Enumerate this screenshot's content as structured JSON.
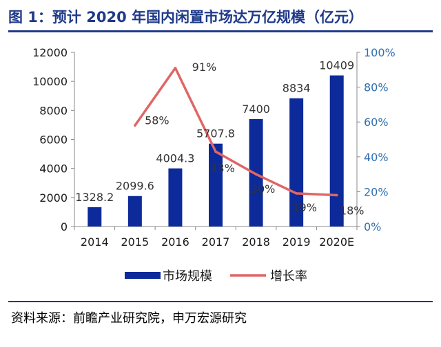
{
  "title": "图 1：预计 2020 年国内闲置市场达万亿规模（亿元）",
  "source": "资料来源：前瞻产业研究院，申万宏源研究",
  "colors": {
    "bar": "#0d2a9a",
    "line": "#e06666",
    "axis_left": "#1a1a1a",
    "axis_right": "#2f6fb0",
    "title": "#1f3a8a"
  },
  "chart_data": {
    "type": "bar",
    "categories": [
      "2014",
      "2015",
      "2016",
      "2017",
      "2018",
      "2019",
      "2020E"
    ],
    "series": [
      {
        "name": "市场规模",
        "type": "bar",
        "axis": "left",
        "values": [
          1328.2,
          2099.6,
          4004.3,
          5707.8,
          7400,
          8834,
          10409
        ],
        "labels": [
          "1328.2",
          "2099.6",
          "4004.3",
          "5707.8",
          "7400",
          "8834",
          "10409"
        ]
      },
      {
        "name": "增长率",
        "type": "line",
        "axis": "right",
        "values": [
          null,
          58,
          91,
          43,
          30,
          19,
          18
        ],
        "labels": [
          "",
          "58%",
          "91%",
          "43%",
          "30%",
          "19%",
          "18%"
        ]
      }
    ],
    "y_left": {
      "ylim": [
        0,
        12000
      ],
      "ticks": [
        "0",
        "2000",
        "4000",
        "6000",
        "8000",
        "10000",
        "12000"
      ]
    },
    "y_right": {
      "ylim": [
        0,
        100
      ],
      "ticks": [
        "0%",
        "20%",
        "40%",
        "60%",
        "80%",
        "100%"
      ]
    },
    "legend_position": "bottom",
    "grid": false
  }
}
